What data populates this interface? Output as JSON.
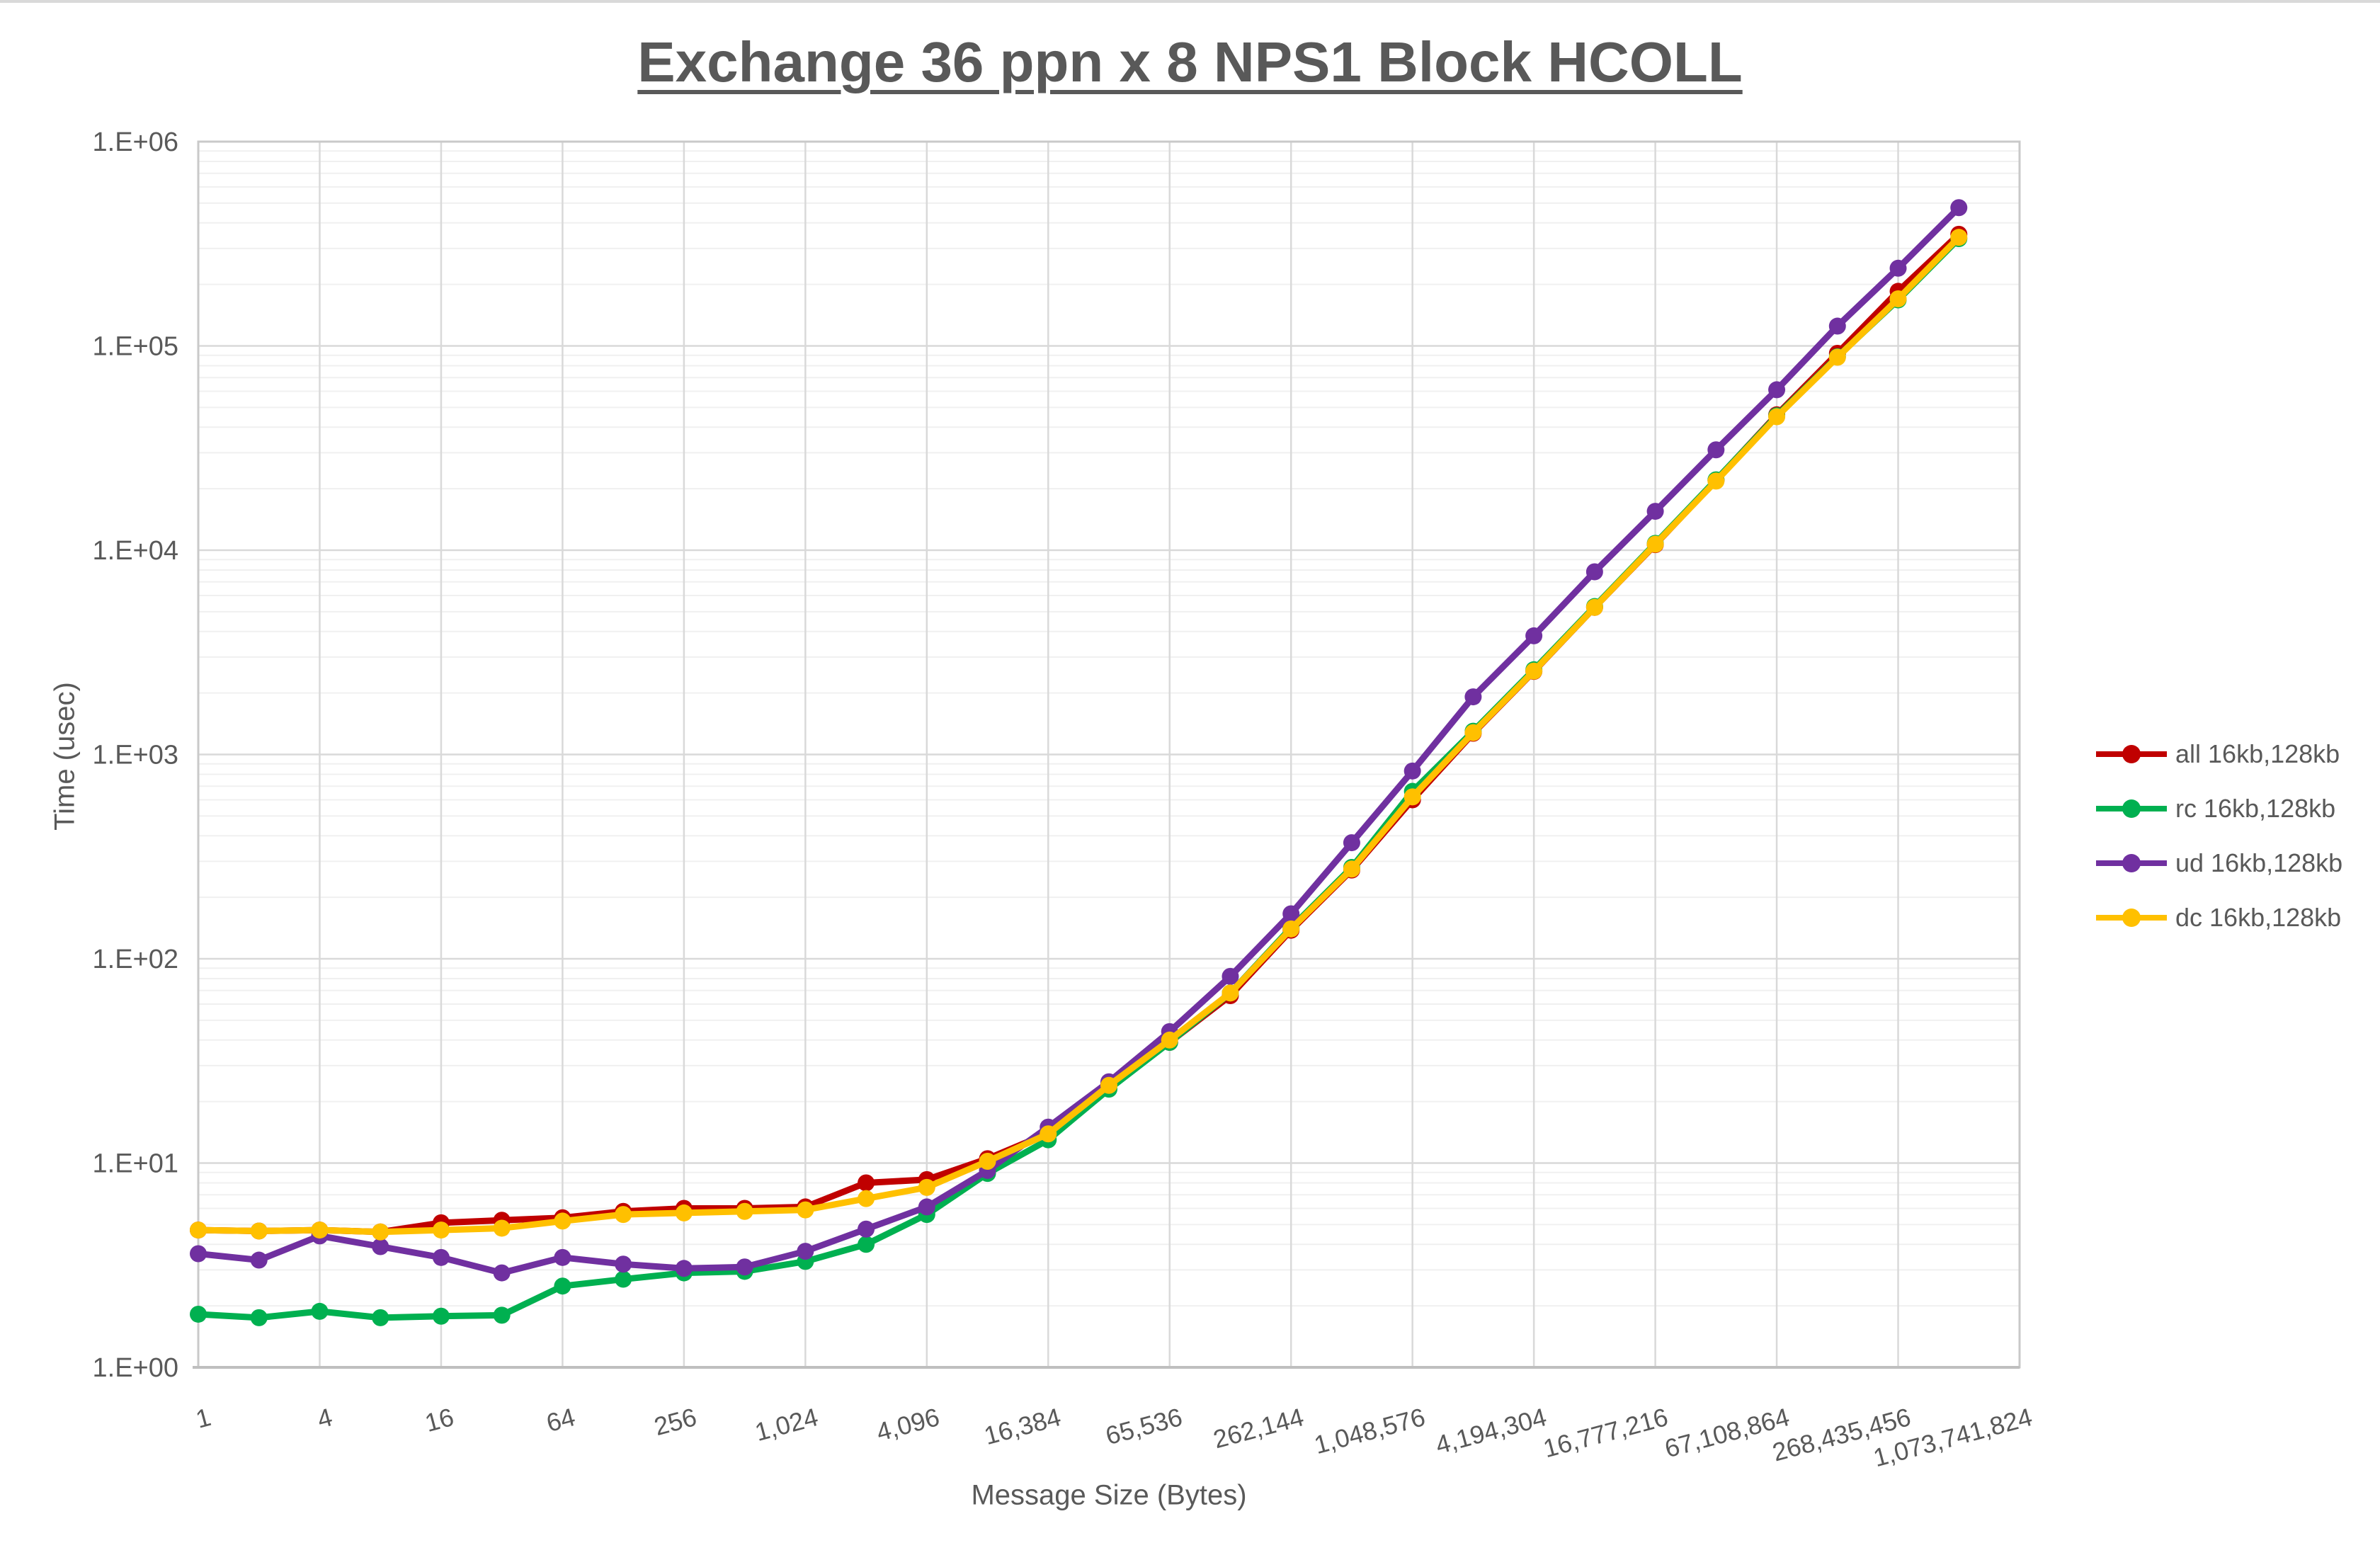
{
  "title": "Exchange 36 ppn x 8 NPS1 Block HCOLL",
  "axes": {
    "x_label": "Message Size (Bytes)",
    "y_label": "Time (usec)",
    "x_tick_labels": [
      "1",
      "4",
      "16",
      "64",
      "256",
      "1,024",
      "4,096",
      "16,384",
      "65,536",
      "262,144",
      "1,048,576",
      "4,194,304",
      "16,777,216",
      "67,108,864",
      "268,435,456",
      "1,073,741,824"
    ],
    "y_tick_labels": [
      "1.E+00",
      "1.E+01",
      "1.E+02",
      "1.E+03",
      "1.E+04",
      "1.E+05",
      "1.E+06"
    ]
  },
  "colors": {
    "all": "#C00000",
    "rc": "#00B050",
    "ud": "#7030A0",
    "dc": "#FFC000",
    "text": "#595959",
    "grid_major": "#D9D9D9",
    "grid_minor": "#F0F0F0",
    "frame": "#C9C9C9"
  },
  "chart_data": {
    "type": "line",
    "title": "Exchange 36 ppn x 8 NPS1 Block HCOLL",
    "xlabel": "Message Size (Bytes)",
    "ylabel": "Time (usec)",
    "x_scale": "log2_categorical",
    "y_scale": "log10",
    "ylim": [
      1,
      1000000
    ],
    "grid": {
      "major": true,
      "minor": true
    },
    "legend_position": "right",
    "x": [
      1,
      2,
      4,
      8,
      16,
      32,
      64,
      128,
      256,
      512,
      1024,
      2048,
      4096,
      8192,
      16384,
      32768,
      65536,
      131072,
      262144,
      524288,
      1048576,
      2097152,
      4194304,
      8388608,
      16777216,
      33554432,
      67108864,
      134217728,
      268435456,
      536870912
    ],
    "series": [
      {
        "name": "all 16kb,128kb",
        "key": "all",
        "color": "#C00000",
        "values": [
          4.7,
          4.65,
          4.7,
          4.6,
          5.1,
          5.25,
          5.4,
          5.8,
          6.0,
          6.0,
          6.1,
          8.0,
          8.3,
          10.5,
          14.0,
          24.5,
          39,
          66,
          138,
          272,
          600,
          1270,
          2550,
          5250,
          10650,
          22000,
          46000,
          92000,
          185000,
          352000
        ]
      },
      {
        "name": "rc 16kb,128kb",
        "key": "rc",
        "color": "#00B050",
        "values": [
          1.82,
          1.75,
          1.88,
          1.75,
          1.78,
          1.8,
          2.5,
          2.7,
          2.9,
          2.95,
          3.3,
          4.0,
          5.6,
          8.9,
          13.0,
          23.0,
          39,
          68,
          142,
          280,
          660,
          1300,
          2600,
          5300,
          10800,
          22100,
          45500,
          88500,
          168000,
          335000
        ]
      },
      {
        "name": "ud 16kb,128kb",
        "key": "ud",
        "color": "#7030A0",
        "values": [
          3.6,
          3.35,
          4.4,
          3.9,
          3.45,
          2.9,
          3.45,
          3.2,
          3.05,
          3.1,
          3.7,
          4.75,
          6.1,
          9.2,
          15.0,
          25.0,
          44,
          82,
          166,
          370,
          830,
          1915,
          3810,
          7840,
          15500,
          31000,
          61000,
          125000,
          240000,
          475000
        ]
      },
      {
        "name": "dc 16kb,128kb",
        "key": "dc",
        "color": "#FFC000",
        "values": [
          4.7,
          4.65,
          4.7,
          4.6,
          4.7,
          4.8,
          5.2,
          5.6,
          5.7,
          5.8,
          5.9,
          6.7,
          7.6,
          10.2,
          13.9,
          24.0,
          40,
          68,
          140,
          275,
          620,
          1280,
          2560,
          5250,
          10700,
          21800,
          45000,
          88000,
          170000,
          340000
        ]
      }
    ]
  }
}
